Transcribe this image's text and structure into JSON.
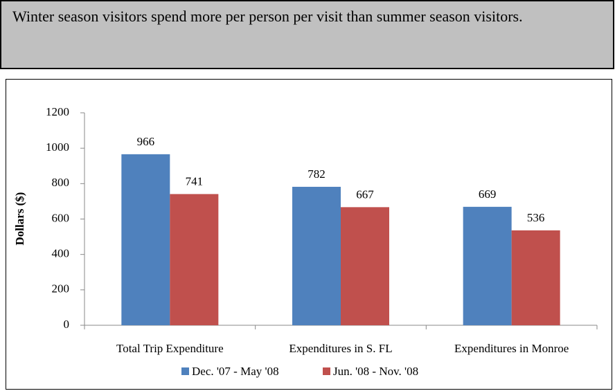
{
  "caption": "Winter season visitors spend more per person per visit than summer season visitors.",
  "chart_data": {
    "type": "bar",
    "ylabel": "Dollars ($)",
    "categories": [
      "Total Trip Expenditure",
      "Expenditures in S. FL",
      "Expenditures in Monroe"
    ],
    "series": [
      {
        "name": "Dec. '07 - May '08",
        "color": "#4f81bd",
        "values": [
          966,
          782,
          669
        ]
      },
      {
        "name": "Jun. '08 - Nov. '08",
        "color": "#c0504d",
        "values": [
          741,
          667,
          536
        ]
      }
    ],
    "ylim": [
      0,
      1200
    ],
    "yticks": [
      0,
      200,
      400,
      600,
      800,
      1000,
      1200
    ],
    "legend": "bottom"
  }
}
